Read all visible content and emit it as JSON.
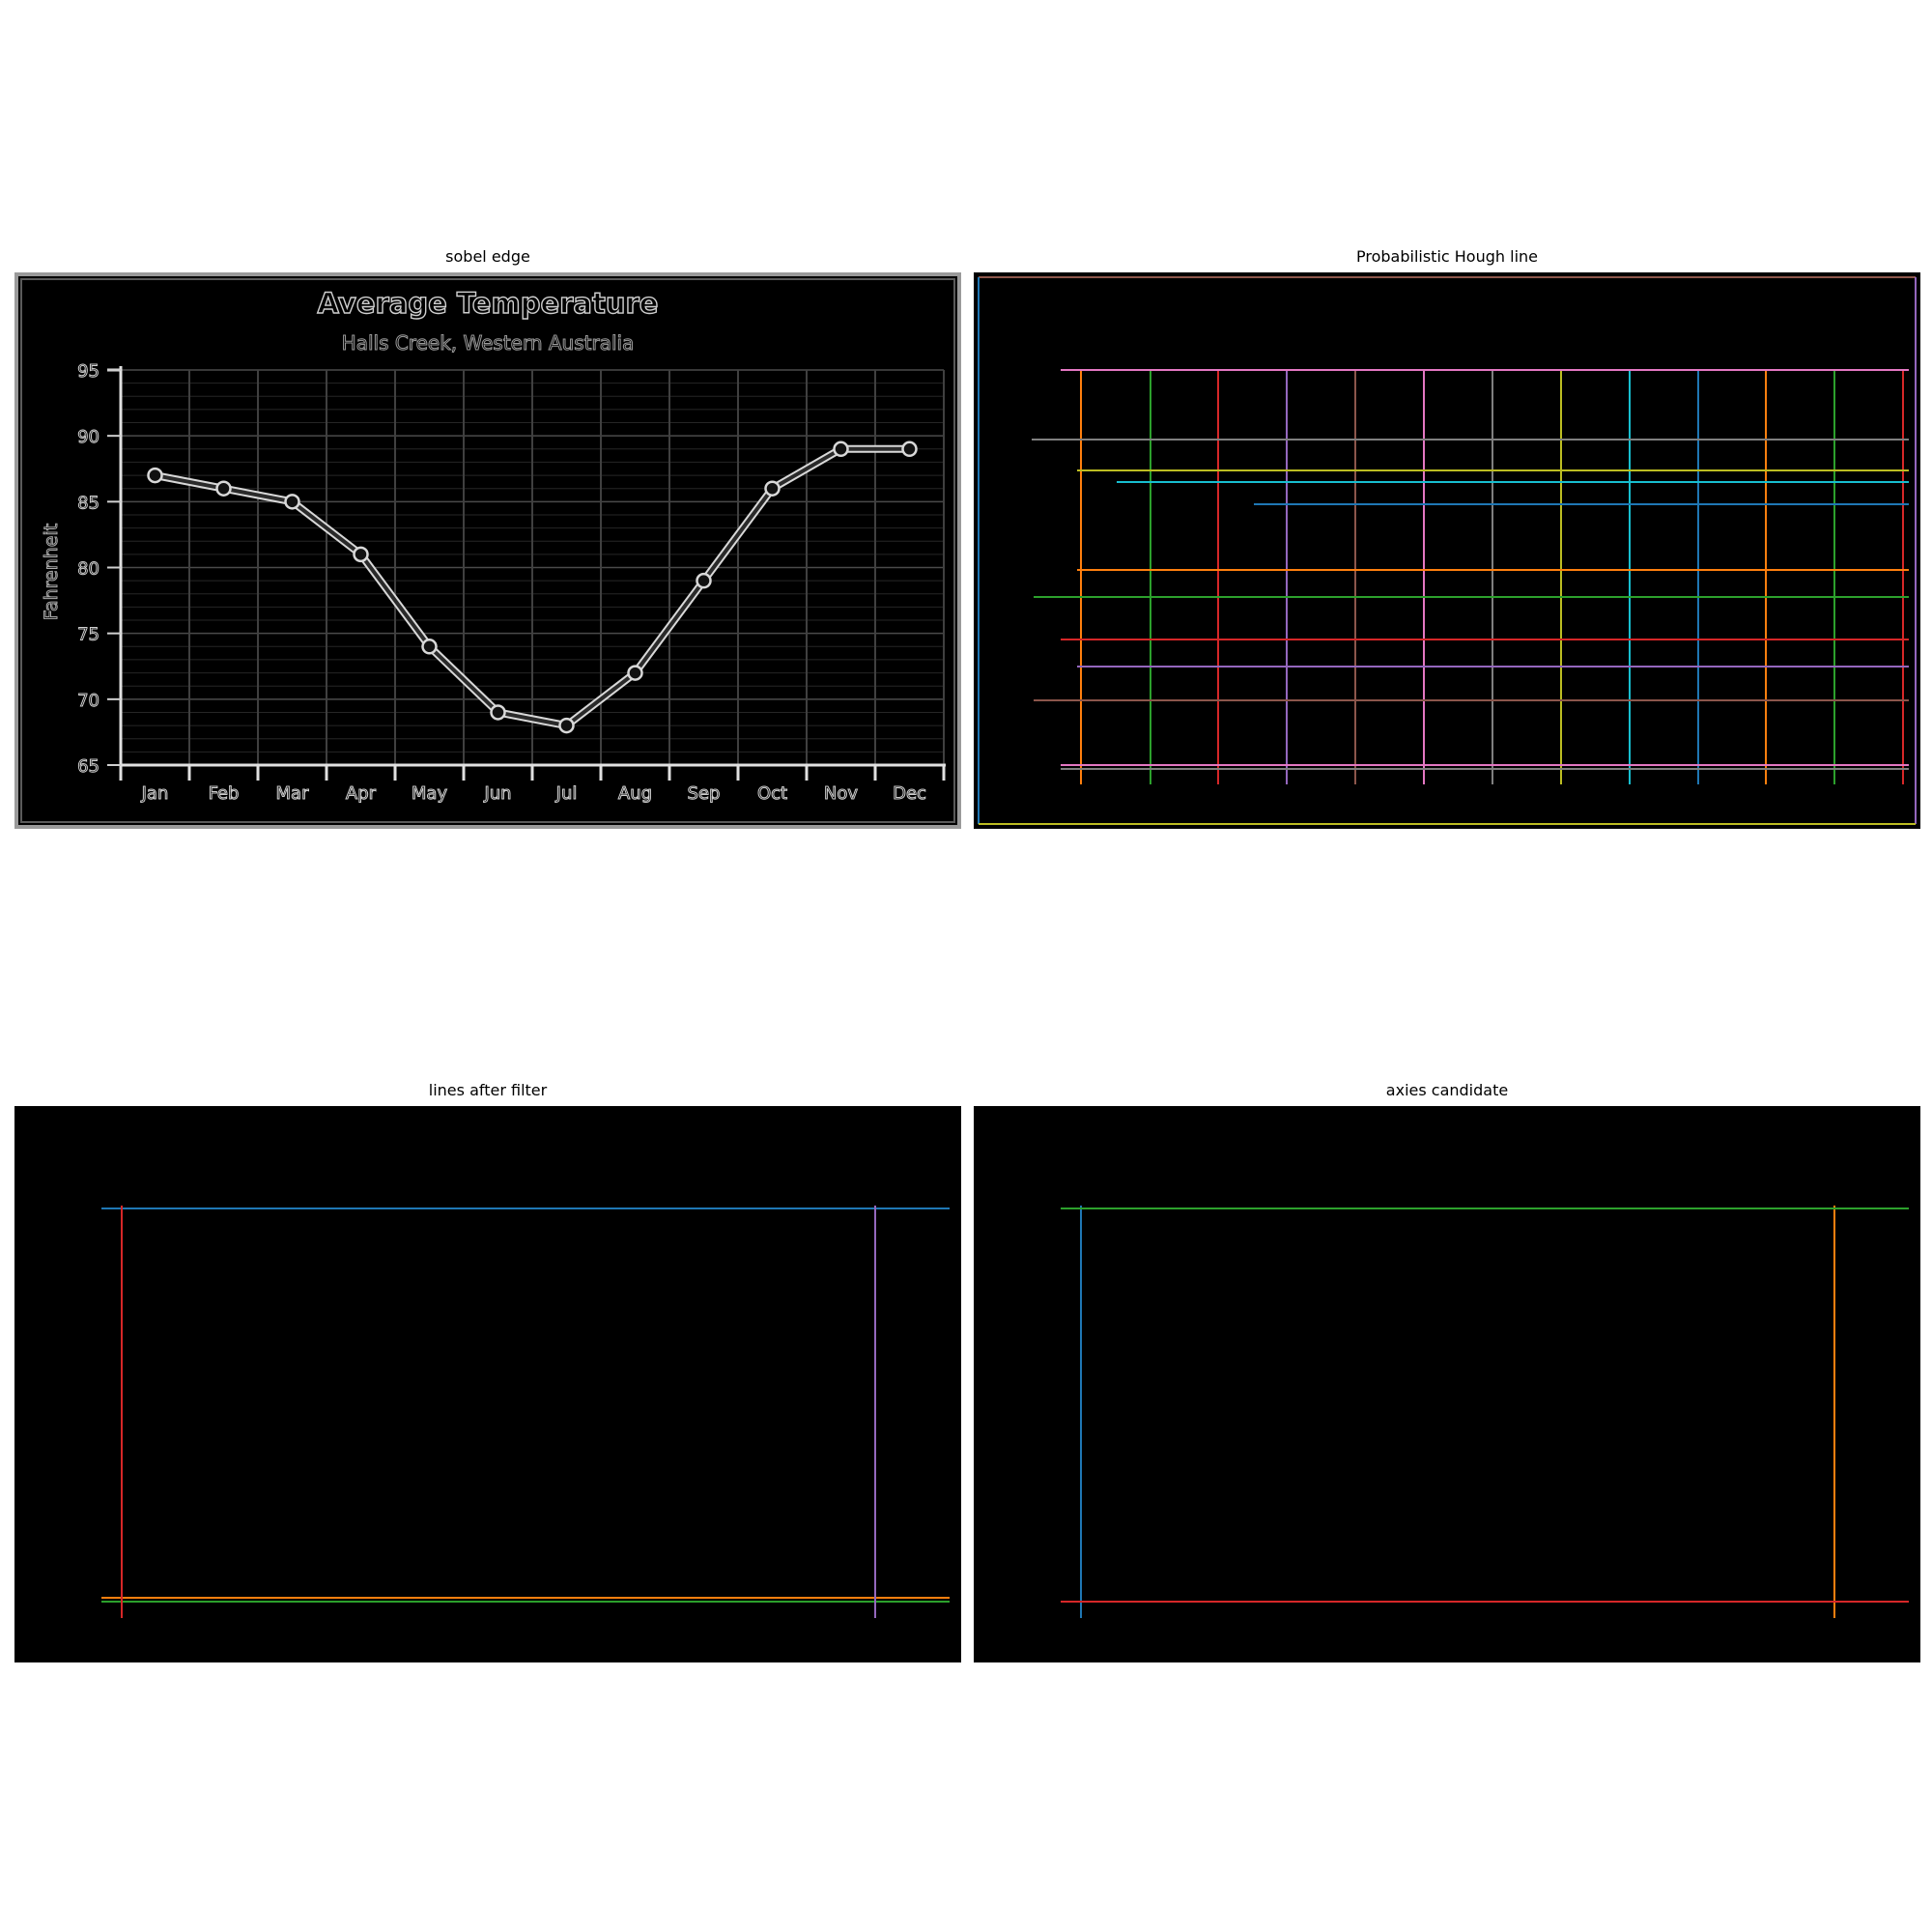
{
  "figure": {
    "panel_titles": [
      "sobel edge",
      "Probabilistic Hough line",
      "lines after filter",
      "axies candidate"
    ]
  },
  "chart_data": [
    {
      "type": "line",
      "panel": "sobel edge",
      "title": "Average Temperature",
      "subtitle": "Halls Creek, Western Australia",
      "xlabel": "",
      "ylabel": "Fahrenheit",
      "categories": [
        "Jan",
        "Feb",
        "Mar",
        "Apr",
        "May",
        "Jun",
        "Jul",
        "Aug",
        "Sep",
        "Oct",
        "Nov",
        "Dec"
      ],
      "values": [
        87,
        86,
        85,
        81,
        74,
        69,
        68,
        72,
        79,
        86,
        89,
        89
      ],
      "ylim": [
        65,
        95
      ],
      "yticks": [
        "65",
        "70",
        "75",
        "80",
        "85",
        "90",
        "95"
      ],
      "grid": true,
      "style": {
        "background": "#000000",
        "edge": "#d0d0d0"
      }
    },
    {
      "type": "line",
      "panel": "Probabilistic Hough line",
      "colors": [
        "#1f77b4",
        "#ff7f0e",
        "#2ca02c",
        "#d62728",
        "#9467bd",
        "#8c564b",
        "#e377c2",
        "#7f7f7f",
        "#bcbd22",
        "#17becf"
      ]
    },
    {
      "type": "line",
      "panel": "lines after filter",
      "colors": [
        "#1f77b4",
        "#ff7f0e",
        "#2ca02c",
        "#d62728",
        "#9467bd"
      ]
    },
    {
      "type": "line",
      "panel": "axies candidate",
      "colors": [
        "#1f77b4",
        "#ff7f0e",
        "#2ca02c",
        "#d62728"
      ]
    }
  ]
}
